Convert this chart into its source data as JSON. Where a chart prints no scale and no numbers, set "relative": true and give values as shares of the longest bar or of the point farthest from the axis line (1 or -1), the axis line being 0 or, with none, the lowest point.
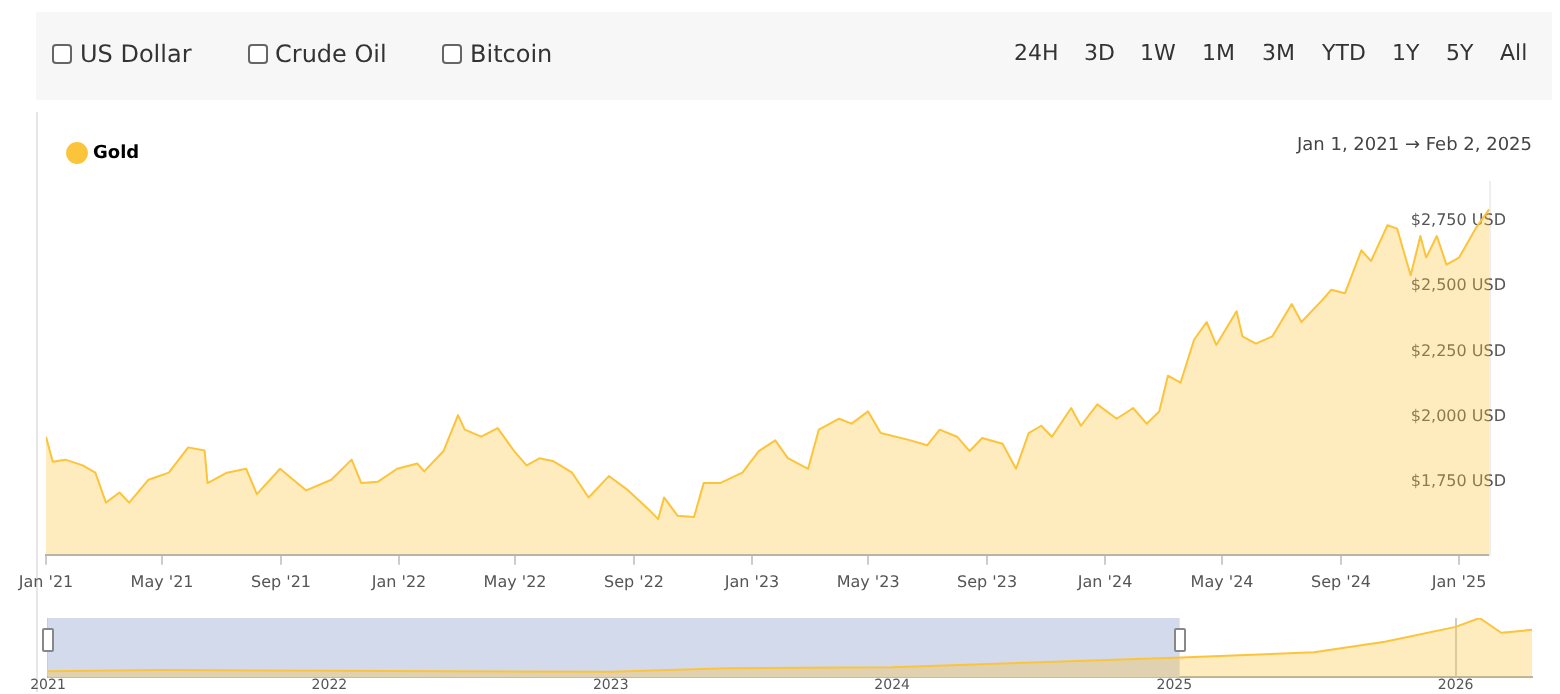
{
  "chart_data": [
    {
      "type": "area",
      "legend": "top left",
      "annotations": [
        "Jan 1, 2021 → Feb 2, 2025"
      ],
      "xlim": [
        "2021-01-01",
        "2025-02-02"
      ],
      "xticks": [
        {
          "value": "2021-01-01",
          "label": "Jan '21"
        },
        {
          "value": "2021-05-01",
          "label": "May '21"
        },
        {
          "value": "2021-09-01",
          "label": "Sep '21"
        },
        {
          "value": "2022-01-01",
          "label": "Jan '22"
        },
        {
          "value": "2022-05-01",
          "label": "May '22"
        },
        {
          "value": "2022-09-01",
          "label": "Sep '22"
        },
        {
          "value": "2023-01-01",
          "label": "Jan '23"
        },
        {
          "value": "2023-05-01",
          "label": "May '23"
        },
        {
          "value": "2023-09-01",
          "label": "Sep '23"
        },
        {
          "value": "2024-01-01",
          "label": "Jan '24"
        },
        {
          "value": "2024-05-01",
          "label": "May '24"
        },
        {
          "value": "2024-09-01",
          "label": "Sep '24"
        },
        {
          "value": "2025-01-01",
          "label": "Jan '25"
        }
      ],
      "ylim": [
        1470,
        2900
      ],
      "yticks": [
        {
          "value": 1750,
          "label": "$1,750 USD"
        },
        {
          "value": 2000,
          "label": "$2,000 USD"
        },
        {
          "value": 2250,
          "label": "$2,250 USD"
        },
        {
          "value": 2500,
          "label": "$2,500 USD"
        },
        {
          "value": 2750,
          "label": "$2,750 USD"
        }
      ],
      "x": [
        "2021-01-01",
        "2021-01-08",
        "2021-01-21",
        "2021-02-08",
        "2021-02-21",
        "2021-03-04",
        "2021-03-18",
        "2021-03-28",
        "2021-04-17",
        "2021-05-08",
        "2021-05-28",
        "2021-06-14",
        "2021-06-17",
        "2021-07-07",
        "2021-07-27",
        "2021-08-07",
        "2021-08-31",
        "2021-09-27",
        "2021-10-23",
        "2021-11-13",
        "2021-11-23",
        "2021-12-10",
        "2021-12-30",
        "2022-01-20",
        "2022-01-27",
        "2022-02-16",
        "2022-03-03",
        "2022-03-10",
        "2022-03-27",
        "2022-04-13",
        "2022-04-30",
        "2022-05-13",
        "2022-05-26",
        "2022-06-09",
        "2022-06-29",
        "2022-07-16",
        "2022-08-06",
        "2022-08-26",
        "2022-09-15",
        "2022-09-26",
        "2022-10-02",
        "2022-10-16",
        "2022-11-02",
        "2022-11-12",
        "2022-11-29",
        "2022-12-22",
        "2023-01-08",
        "2023-01-25",
        "2023-02-07",
        "2023-02-28",
        "2023-03-11",
        "2023-04-01",
        "2023-04-14",
        "2023-05-01",
        "2023-05-14",
        "2023-06-14",
        "2023-07-01",
        "2023-07-14",
        "2023-08-01",
        "2023-08-14",
        "2023-08-27",
        "2023-09-17",
        "2023-10-01",
        "2023-10-14",
        "2023-10-27",
        "2023-11-07",
        "2023-11-27",
        "2023-12-07",
        "2023-12-24",
        "2024-01-13",
        "2024-01-30",
        "2024-02-13",
        "2024-02-26",
        "2024-03-06",
        "2024-03-19",
        "2024-04-02",
        "2024-04-15",
        "2024-04-25",
        "2024-05-16",
        "2024-05-22",
        "2024-06-05",
        "2024-06-22",
        "2024-07-12",
        "2024-07-22",
        "2024-08-12",
        "2024-08-22",
        "2024-09-05",
        "2024-09-22",
        "2024-10-02",
        "2024-10-19",
        "2024-10-29",
        "2024-11-12",
        "2024-11-22",
        "2024-11-28",
        "2024-12-09",
        "2024-12-19",
        "2025-01-01",
        "2025-01-18",
        "2025-02-01"
      ],
      "series": [
        {
          "name": "Gold",
          "color": "#fcc43b",
          "values": [
            1923,
            1827,
            1835,
            1813,
            1785,
            1670,
            1709,
            1670,
            1758,
            1785,
            1882,
            1870,
            1745,
            1785,
            1800,
            1703,
            1800,
            1717,
            1758,
            1835,
            1745,
            1750,
            1800,
            1820,
            1790,
            1868,
            2006,
            1950,
            1923,
            1956,
            1868,
            1813,
            1840,
            1830,
            1785,
            1690,
            1772,
            1717,
            1648,
            1607,
            1690,
            1620,
            1615,
            1745,
            1745,
            1785,
            1868,
            1909,
            1841,
            1800,
            1950,
            1992,
            1973,
            2020,
            1937,
            1909,
            1890,
            1950,
            1923,
            1868,
            1918,
            1896,
            1800,
            1937,
            1965,
            1923,
            2033,
            1965,
            2047,
            1992,
            2033,
            1973,
            2020,
            2157,
            2130,
            2295,
            2363,
            2275,
            2404,
            2308,
            2280,
            2308,
            2432,
            2363,
            2445,
            2487,
            2473,
            2638,
            2597,
            2734,
            2721,
            2542,
            2693,
            2610,
            2693,
            2583,
            2610,
            2721,
            2795
          ]
        }
      ]
    },
    {
      "type": "area",
      "relative": true,
      "tick_labels": "x",
      "grid": "x",
      "xlim": [
        "2021-01-01",
        "2026-04-10"
      ],
      "xticks": [
        {
          "value": "2021-01-01",
          "label": "2021"
        },
        {
          "value": "2022-01-01",
          "label": "2022"
        },
        {
          "value": "2023-01-01",
          "label": "2023"
        },
        {
          "value": "2024-01-01",
          "label": "2024"
        },
        {
          "value": "2025-01-01",
          "label": "2025"
        },
        {
          "value": "2026-01-01",
          "label": "2026"
        }
      ],
      "bands": [
        {
          "axis": "x",
          "from": "2021-01-01",
          "to": "2025-01-08",
          "color": "#d3daec"
        }
      ],
      "x": [
        "2021-01-01",
        "2021-06-01",
        "2022-01-01",
        "2022-06-01",
        "2023-01-01",
        "2023-06-01",
        "2024-01-01",
        "2024-07-01",
        "2025-01-01",
        "2025-07-01",
        "2025-10-01",
        "2026-01-01",
        "2026-02-01",
        "2026-03-01",
        "2026-04-10"
      ],
      "series": [
        {
          "color": "#fcc43b",
          "values": [
            0.1,
            0.12,
            0.11,
            0.1,
            0.09,
            0.15,
            0.17,
            0.25,
            0.33,
            0.42,
            0.6,
            0.85,
            1.0,
            0.75,
            0.8
          ]
        }
      ]
    },
    {
      "type": "other",
      "annotations": [
        "US Dollar",
        "Crude Oil",
        "Bitcoin"
      ]
    },
    {
      "type": "other",
      "annotations": [
        "24H",
        "3D",
        "1W",
        "1M",
        "3M",
        "YTD",
        "1Y",
        "5Y",
        "All"
      ]
    }
  ]
}
